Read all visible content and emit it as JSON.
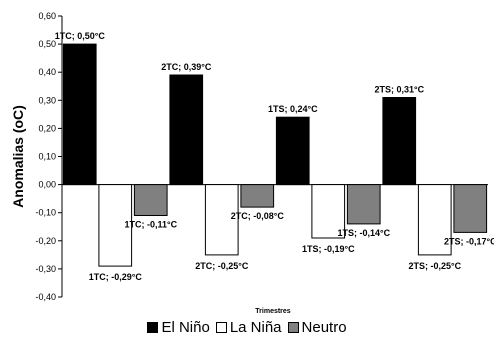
{
  "chart_data": {
    "type": "bar",
    "title": "",
    "ylabel": "Anomalias (oC)",
    "xlabel": "Trimestres",
    "ylim": [
      -0.4,
      0.6
    ],
    "ytick_step": 0.1,
    "ytick_labels": [
      "-0,40",
      "-0,30",
      "-0,20",
      "-0,10",
      "0,00",
      "0,10",
      "0,20",
      "0,30",
      "0,40",
      "0,50",
      "0,60"
    ],
    "grid": false,
    "legend_position": "bottom",
    "series": [
      {
        "name": "El Niño",
        "color": "#000000"
      },
      {
        "name": "La Niña",
        "color": "#ffffff"
      },
      {
        "name": "Neutro",
        "color": "#808080"
      }
    ],
    "bars": [
      {
        "series": "El Niño",
        "value": 0.5,
        "label": "1TC; 0,50°C"
      },
      {
        "series": "La Niña",
        "value": -0.29,
        "label": "1TC; -0,29°C"
      },
      {
        "series": "Neutro",
        "value": -0.11,
        "label": "1TC; -0,11°C"
      },
      {
        "series": "El Niño",
        "value": 0.39,
        "label": "2TC; 0,39°C"
      },
      {
        "series": "La Niña",
        "value": -0.25,
        "label": "2TC; -0,25°C"
      },
      {
        "series": "Neutro",
        "value": -0.08,
        "label": "2TC; -0,08°C"
      },
      {
        "series": "El Niño",
        "value": 0.24,
        "label": "1TS; 0,24°C"
      },
      {
        "series": "La Niña",
        "value": -0.19,
        "label": "1TS; -0,19°C"
      },
      {
        "series": "Neutro",
        "value": -0.14,
        "label": "1TS; -0,14°C"
      },
      {
        "series": "El Niño",
        "value": 0.31,
        "label": "2TS; 0,31°C"
      },
      {
        "series": "La Niña",
        "value": -0.25,
        "label": "2TS; -0,25°C"
      },
      {
        "series": "Neutro",
        "value": -0.17,
        "label": "2TS; -0,17°C"
      }
    ]
  }
}
